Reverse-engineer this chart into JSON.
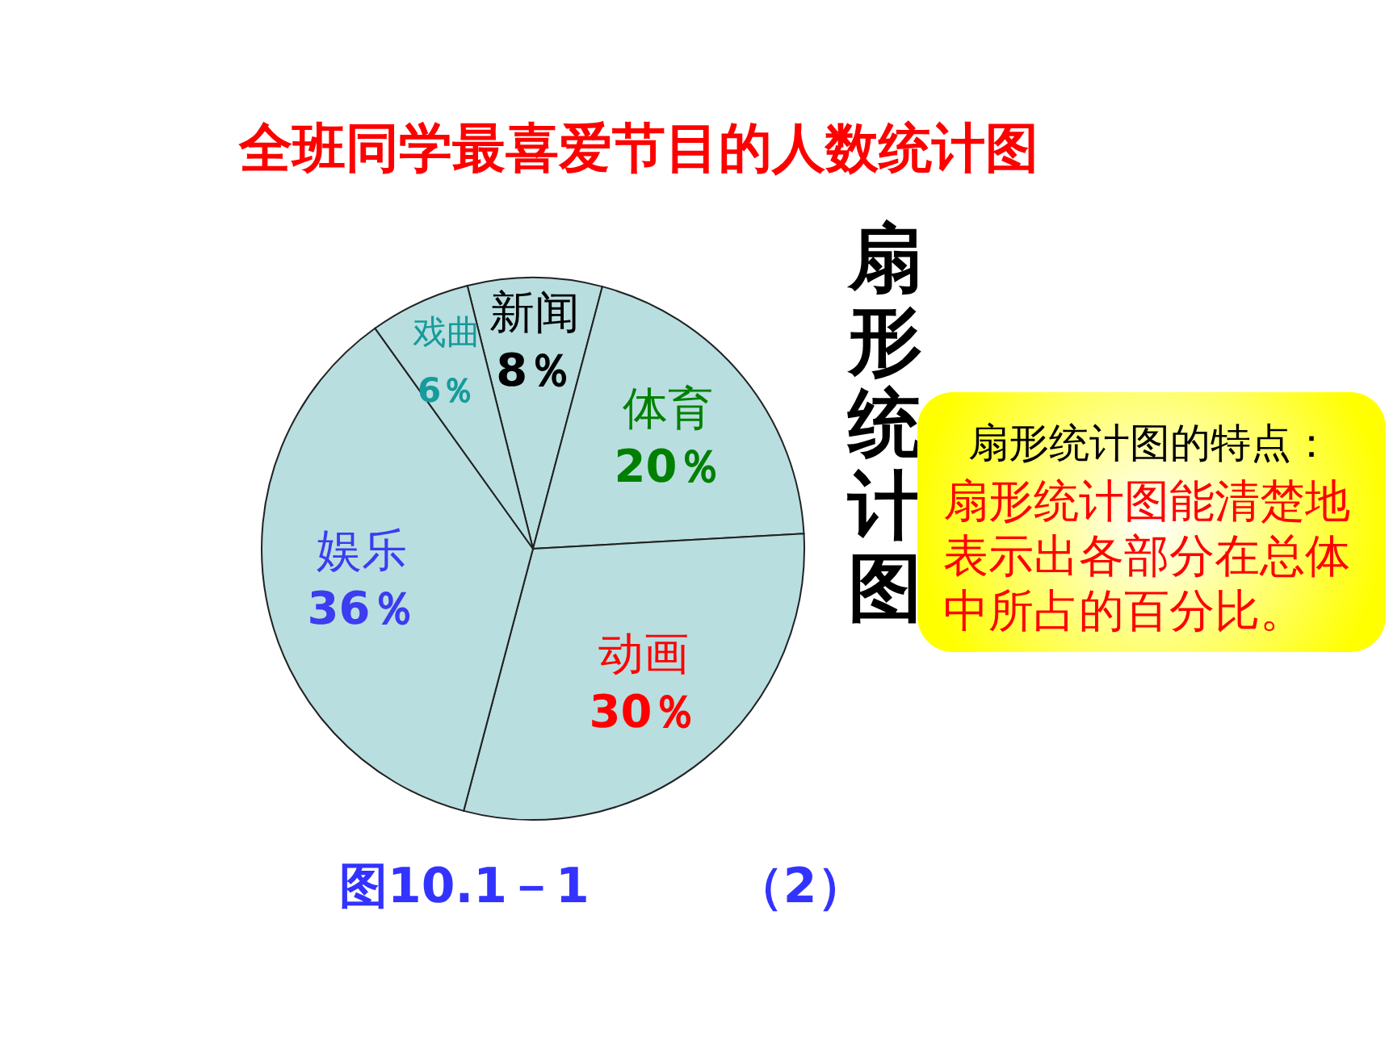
{
  "chart_data": {
    "type": "pie",
    "title": "全班同学最喜爱节目的人数统计图",
    "categories": [
      "新闻",
      "体育",
      "动画",
      "娱乐",
      "戏曲"
    ],
    "values": [
      8,
      20,
      30,
      36,
      6
    ],
    "colors": [
      "#b9dee0",
      "#b9dee0",
      "#b9dee0",
      "#b9dee0",
      "#b9dee0"
    ],
    "value_labels": [
      "8％",
      "20％",
      "30％",
      "36％",
      "6％"
    ],
    "annotations": [
      "扇形统计图",
      "扇形统计图的特点：",
      "扇形统计图能清楚地表示出各部分在总体中所占的百分比。",
      "图10.1－1　　　（2）"
    ]
  }
}
